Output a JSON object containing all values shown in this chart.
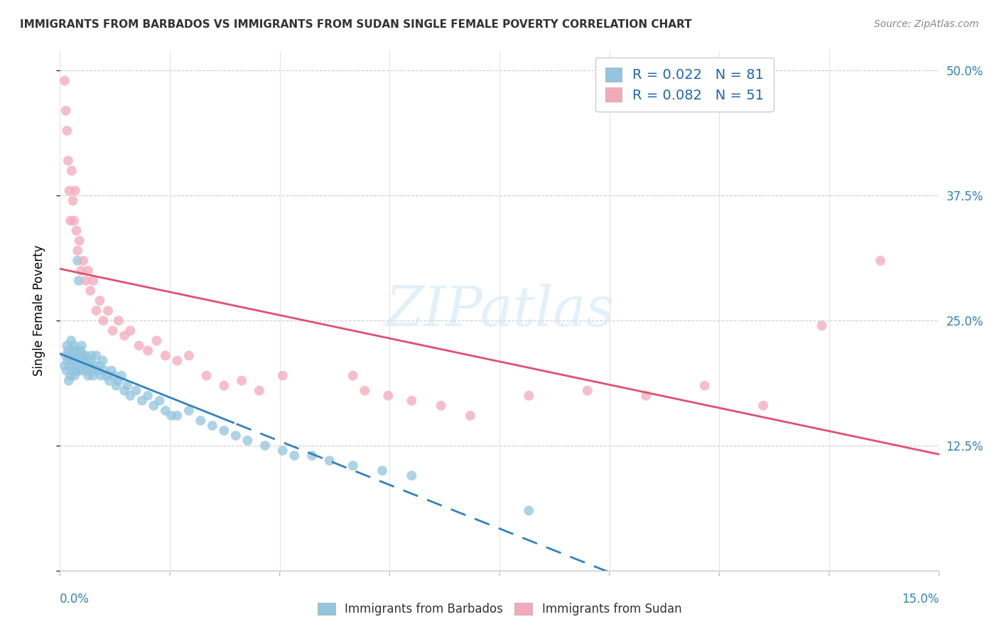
{
  "title": "IMMIGRANTS FROM BARBADOS VS IMMIGRANTS FROM SUDAN SINGLE FEMALE POVERTY CORRELATION CHART",
  "source": "Source: ZipAtlas.com",
  "ylabel": "Single Female Poverty",
  "xmin": 0.0,
  "xmax": 0.15,
  "ymin": 0.0,
  "ymax": 0.52,
  "barbados_color": "#92c5de",
  "sudan_color": "#f4a9bb",
  "barbados_R": 0.022,
  "barbados_N": 81,
  "sudan_R": 0.082,
  "sudan_N": 51,
  "legend_R_color": "#2166ac",
  "watermark": "ZIPatlas",
  "barbados_x": [
    0.0008,
    0.001,
    0.0011,
    0.0012,
    0.0013,
    0.0014,
    0.0015,
    0.0016,
    0.0017,
    0.0018,
    0.0019,
    0.002,
    0.0021,
    0.0022,
    0.0023,
    0.0024,
    0.0025,
    0.0026,
    0.0027,
    0.0028,
    0.0029,
    0.003,
    0.0031,
    0.0032,
    0.0033,
    0.0034,
    0.0035,
    0.0036,
    0.0037,
    0.0038,
    0.0039,
    0.004,
    0.0042,
    0.0044,
    0.0046,
    0.0048,
    0.005,
    0.0052,
    0.0054,
    0.0056,
    0.0058,
    0.006,
    0.0062,
    0.0065,
    0.0068,
    0.007,
    0.0073,
    0.0076,
    0.008,
    0.0084,
    0.0088,
    0.0092,
    0.0096,
    0.01,
    0.0105,
    0.011,
    0.0115,
    0.012,
    0.013,
    0.014,
    0.015,
    0.016,
    0.017,
    0.018,
    0.019,
    0.02,
    0.022,
    0.024,
    0.026,
    0.028,
    0.03,
    0.032,
    0.035,
    0.038,
    0.04,
    0.043,
    0.046,
    0.05,
    0.055,
    0.06,
    0.08
  ],
  "barbados_y": [
    0.205,
    0.215,
    0.2,
    0.225,
    0.21,
    0.22,
    0.19,
    0.215,
    0.205,
    0.195,
    0.23,
    0.21,
    0.22,
    0.2,
    0.215,
    0.225,
    0.195,
    0.21,
    0.22,
    0.2,
    0.215,
    0.31,
    0.2,
    0.29,
    0.21,
    0.205,
    0.22,
    0.215,
    0.225,
    0.2,
    0.215,
    0.205,
    0.21,
    0.215,
    0.2,
    0.195,
    0.205,
    0.21,
    0.215,
    0.195,
    0.2,
    0.205,
    0.215,
    0.2,
    0.205,
    0.195,
    0.21,
    0.2,
    0.195,
    0.19,
    0.2,
    0.195,
    0.185,
    0.19,
    0.195,
    0.18,
    0.185,
    0.175,
    0.18,
    0.17,
    0.175,
    0.165,
    0.17,
    0.16,
    0.155,
    0.155,
    0.16,
    0.15,
    0.145,
    0.14,
    0.135,
    0.13,
    0.125,
    0.12,
    0.115,
    0.115,
    0.11,
    0.105,
    0.1,
    0.095,
    0.06
  ],
  "sudan_x": [
    0.0008,
    0.001,
    0.0012,
    0.0014,
    0.0016,
    0.0018,
    0.002,
    0.0022,
    0.0024,
    0.0026,
    0.0028,
    0.003,
    0.0033,
    0.0036,
    0.004,
    0.0044,
    0.0048,
    0.0052,
    0.0057,
    0.0062,
    0.0068,
    0.0074,
    0.0082,
    0.009,
    0.01,
    0.011,
    0.012,
    0.0135,
    0.015,
    0.0165,
    0.018,
    0.02,
    0.022,
    0.025,
    0.028,
    0.031,
    0.034,
    0.038,
    0.05,
    0.052,
    0.056,
    0.06,
    0.065,
    0.07,
    0.08,
    0.09,
    0.1,
    0.11,
    0.12,
    0.13,
    0.14
  ],
  "sudan_y": [
    0.49,
    0.46,
    0.44,
    0.41,
    0.38,
    0.35,
    0.4,
    0.37,
    0.35,
    0.38,
    0.34,
    0.32,
    0.33,
    0.3,
    0.31,
    0.29,
    0.3,
    0.28,
    0.29,
    0.26,
    0.27,
    0.25,
    0.26,
    0.24,
    0.25,
    0.235,
    0.24,
    0.225,
    0.22,
    0.23,
    0.215,
    0.21,
    0.215,
    0.195,
    0.185,
    0.19,
    0.18,
    0.195,
    0.195,
    0.18,
    0.175,
    0.17,
    0.165,
    0.155,
    0.175,
    0.18,
    0.175,
    0.185,
    0.165,
    0.245,
    0.31
  ]
}
